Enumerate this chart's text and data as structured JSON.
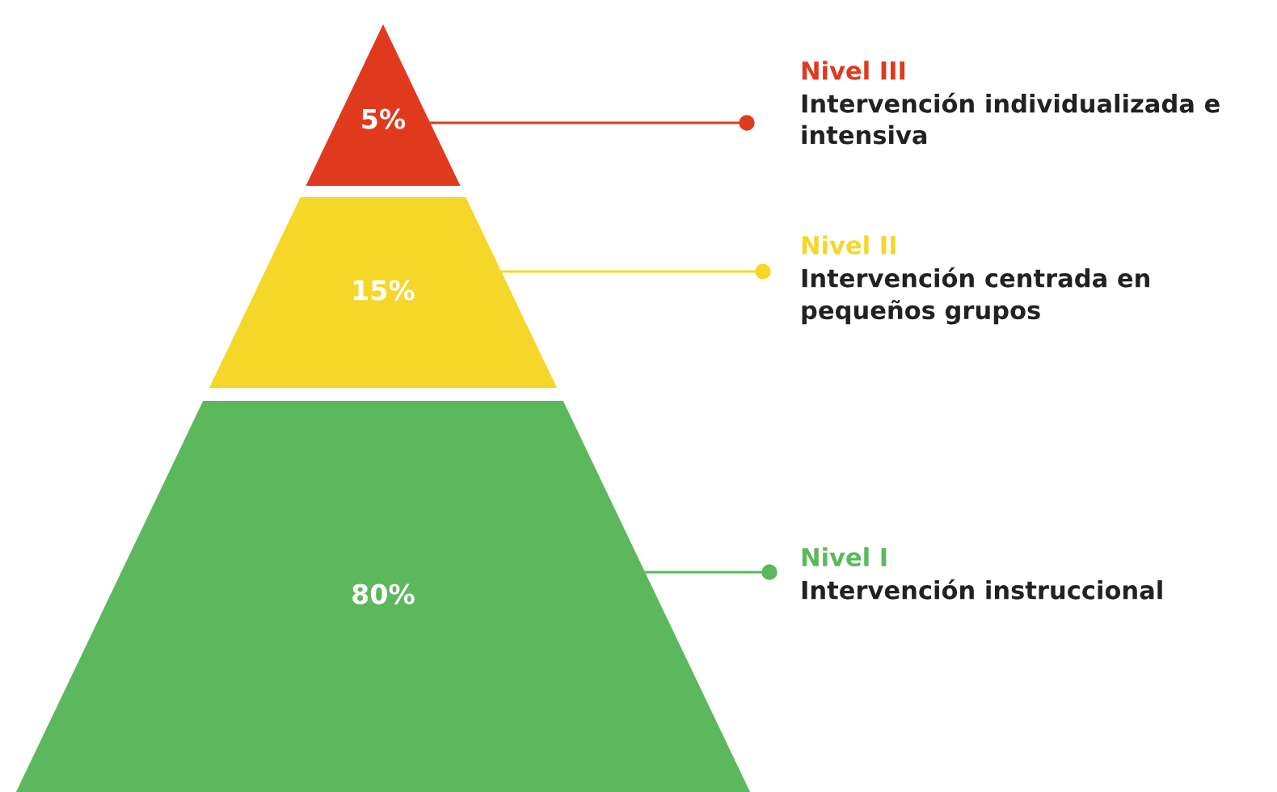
{
  "chart_data": {
    "type": "other",
    "categories": [
      "Nivel III",
      "Nivel II",
      "Nivel I"
    ],
    "values": [
      5,
      15,
      80
    ],
    "value_labels": [
      "5%",
      "15%",
      "80%"
    ],
    "colors": [
      "#e03a1e",
      "#f5d72a",
      "#5cb85c"
    ],
    "annotations": [
      "Intervención individualizada e intensiva",
      "Intervención centrada en pequeños grupos",
      "Intervención instruccional"
    ]
  }
}
